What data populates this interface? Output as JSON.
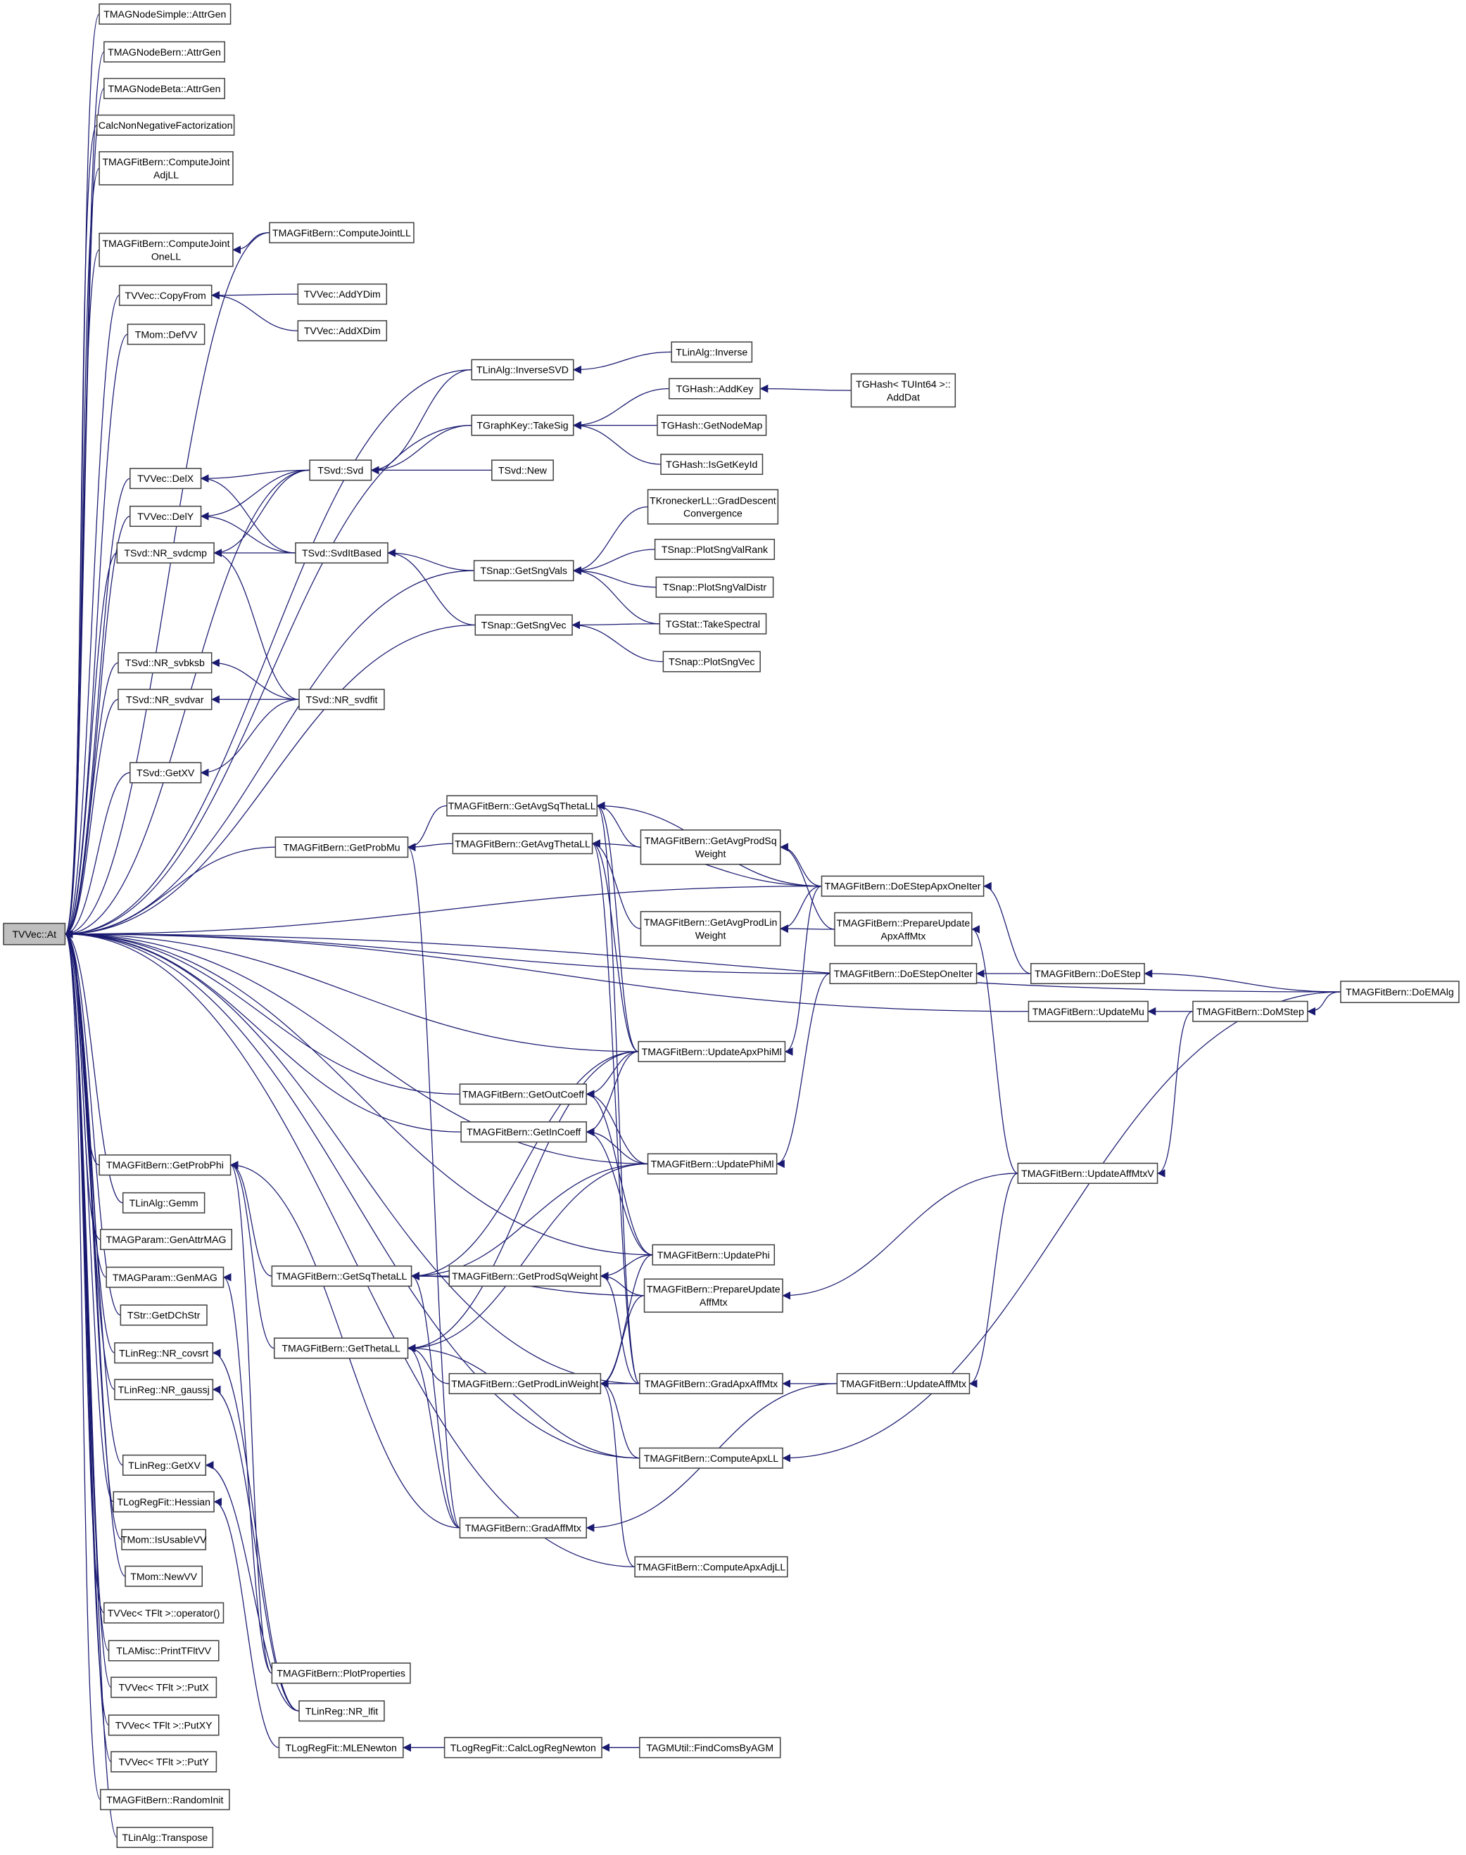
{
  "graph": {
    "root": "At",
    "edge_color": "#191970",
    "root_fill": "#bfbfbf",
    "nodes": [
      {
        "id": "At",
        "label": "TVVec::At"
      },
      {
        "id": "NSimple",
        "label": "TMAGNodeSimple::AttrGen"
      },
      {
        "id": "NBern",
        "label": "TMAGNodeBern::AttrGen"
      },
      {
        "id": "NBeta",
        "label": "TMAGNodeBeta::AttrGen"
      },
      {
        "id": "CalcNNF",
        "label": "CalcNonNegativeFactorization"
      },
      {
        "id": "CJAdj",
        "label": "TMAGFitBern::ComputeJoint\nAdjLL"
      },
      {
        "id": "CJOne",
        "label": "TMAGFitBern::ComputeJoint\nOneLL"
      },
      {
        "id": "CopyFrom",
        "label": "TVVec::CopyFrom"
      },
      {
        "id": "DefVV",
        "label": "TMom::DefVV"
      },
      {
        "id": "DelX",
        "label": "TVVec::DelX"
      },
      {
        "id": "DelY",
        "label": "TVVec::DelY"
      },
      {
        "id": "svdcmp",
        "label": "TSvd::NR_svdcmp"
      },
      {
        "id": "svbksb",
        "label": "TSvd::NR_svbksb"
      },
      {
        "id": "svdvar",
        "label": "TSvd::NR_svdvar"
      },
      {
        "id": "SvdGetXV",
        "label": "TSvd::GetXV"
      },
      {
        "id": "ProbMu",
        "label": "TMAGFitBern::GetProbMu"
      },
      {
        "id": "ProbPhi",
        "label": "TMAGFitBern::GetProbPhi"
      },
      {
        "id": "Gemm",
        "label": "TLinAlg::Gemm"
      },
      {
        "id": "GenAttrMAG",
        "label": "TMAGParam::GenAttrMAG"
      },
      {
        "id": "GenMAG",
        "label": "TMAGParam::GenMAG"
      },
      {
        "id": "GetDChStr",
        "label": "TStr::GetDChStr"
      },
      {
        "id": "covsrt",
        "label": "TLinReg::NR_covsrt"
      },
      {
        "id": "gaussj",
        "label": "TLinReg::NR_gaussj"
      },
      {
        "id": "LRGetXV",
        "label": "TLinReg::GetXV"
      },
      {
        "id": "Hessian",
        "label": "TLogRegFit::Hessian"
      },
      {
        "id": "IsUsableVV",
        "label": "TMom::IsUsableVV"
      },
      {
        "id": "NewVV",
        "label": "TMom::NewVV"
      },
      {
        "id": "OpParen",
        "label": "TVVec< TFlt >::operator()"
      },
      {
        "id": "PrintTFltVV",
        "label": "TLAMisc::PrintTFltVV"
      },
      {
        "id": "PutX",
        "label": "TVVec< TFlt >::PutX"
      },
      {
        "id": "PutXY",
        "label": "TVVec< TFlt >::PutXY"
      },
      {
        "id": "PutY",
        "label": "TVVec< TFlt >::PutY"
      },
      {
        "id": "RandomInit",
        "label": "TMAGFitBern::RandomInit"
      },
      {
        "id": "Transpose",
        "label": "TLinAlg::Transpose"
      },
      {
        "id": "CJLL",
        "label": "TMAGFitBern::ComputeJointLL"
      },
      {
        "id": "AddYDim",
        "label": "TVVec::AddYDim"
      },
      {
        "id": "AddXDim",
        "label": "TVVec::AddXDim"
      },
      {
        "id": "Svd",
        "label": "TSvd::Svd"
      },
      {
        "id": "SvdIt",
        "label": "TSvd::SvdItBased"
      },
      {
        "id": "svdfit",
        "label": "TSvd::NR_svdfit"
      },
      {
        "id": "SqThetaLL",
        "label": "TMAGFitBern::GetSqThetaLL"
      },
      {
        "id": "ThetaLL",
        "label": "TMAGFitBern::GetThetaLL"
      },
      {
        "id": "PlotProps",
        "label": "TMAGFitBern::PlotProperties"
      },
      {
        "id": "lfit",
        "label": "TLinReg::NR_lfit"
      },
      {
        "id": "MLENewton",
        "label": "TLogRegFit::MLENewton"
      },
      {
        "id": "InvSVD",
        "label": "TLinAlg::InverseSVD"
      },
      {
        "id": "TakeSig",
        "label": "TGraphKey::TakeSig"
      },
      {
        "id": "SvdNew",
        "label": "TSvd::New"
      },
      {
        "id": "SngVals",
        "label": "TSnap::GetSngVals"
      },
      {
        "id": "SngVec",
        "label": "TSnap::GetSngVec"
      },
      {
        "id": "AvgSq",
        "label": "TMAGFitBern::GetAvgSqThetaLL"
      },
      {
        "id": "AvgTh",
        "label": "TMAGFitBern::GetAvgThetaLL"
      },
      {
        "id": "OutCoeff",
        "label": "TMAGFitBern::GetOutCoeff"
      },
      {
        "id": "InCoeff",
        "label": "TMAGFitBern::GetInCoeff"
      },
      {
        "id": "ProdSq",
        "label": "TMAGFitBern::GetProdSqWeight"
      },
      {
        "id": "ProdLin",
        "label": "TMAGFitBern::GetProdLinWeight"
      },
      {
        "id": "GradAff",
        "label": "TMAGFitBern::GradAffMtx"
      },
      {
        "id": "CalcLRN",
        "label": "TLogRegFit::CalcLogRegNewton"
      },
      {
        "id": "Inverse",
        "label": "TLinAlg::Inverse"
      },
      {
        "id": "AddKey",
        "label": "TGHash::AddKey"
      },
      {
        "id": "GetNodeMap",
        "label": "TGHash::GetNodeMap"
      },
      {
        "id": "IsGetKeyId",
        "label": "TGHash::IsGetKeyId"
      },
      {
        "id": "GradDesc",
        "label": "TKroneckerLL::GradDescent\nConvergence"
      },
      {
        "id": "PlotRank",
        "label": "TSnap::PlotSngValRank"
      },
      {
        "id": "PlotDistr",
        "label": "TSnap::PlotSngValDistr"
      },
      {
        "id": "TakeSpec",
        "label": "TGStat::TakeSpectral"
      },
      {
        "id": "PlotSngVec",
        "label": "TSnap::PlotSngVec"
      },
      {
        "id": "AvgProdSq",
        "label": "TMAGFitBern::GetAvgProdSq\nWeight"
      },
      {
        "id": "AvgProdLin",
        "label": "TMAGFitBern::GetAvgProdLin\nWeight"
      },
      {
        "id": "UpdApxPhiMl",
        "label": "TMAGFitBern::UpdateApxPhiMl"
      },
      {
        "id": "UpdPhiMl",
        "label": "TMAGFitBern::UpdatePhiMl"
      },
      {
        "id": "UpdPhi",
        "label": "TMAGFitBern::UpdatePhi"
      },
      {
        "id": "PrepAff",
        "label": "TMAGFitBern::PrepareUpdate\nAffMtx"
      },
      {
        "id": "GradApx",
        "label": "TMAGFitBern::GradApxAffMtx"
      },
      {
        "id": "ApxLL",
        "label": "TMAGFitBern::ComputeApxLL"
      },
      {
        "id": "ApxAdjLL",
        "label": "TMAGFitBern::ComputeApxAdjLL"
      },
      {
        "id": "FindComs",
        "label": "TAGMUtil::FindComsByAGM"
      },
      {
        "id": "AddDat",
        "label": "TGHash< TUInt64 >::\nAddDat"
      },
      {
        "id": "EApxOne",
        "label": "TMAGFitBern::DoEStepApxOneIter"
      },
      {
        "id": "PrepApx",
        "label": "TMAGFitBern::PrepareUpdate\nApxAffMtx"
      },
      {
        "id": "EOne",
        "label": "TMAGFitBern::DoEStepOneIter"
      },
      {
        "id": "UpdAff",
        "label": "TMAGFitBern::UpdateAffMtx"
      },
      {
        "id": "EStep",
        "label": "TMAGFitBern::DoEStep"
      },
      {
        "id": "UpdMu",
        "label": "TMAGFitBern::UpdateMu"
      },
      {
        "id": "UpdAffV",
        "label": "TMAGFitBern::UpdateAffMtxV"
      },
      {
        "id": "MStep",
        "label": "TMAGFitBern::DoMStep"
      },
      {
        "id": "EMAlg",
        "label": "TMAGFitBern::DoEMAlg"
      }
    ],
    "edges": [
      [
        "NSimple",
        "At"
      ],
      [
        "NBern",
        "At"
      ],
      [
        "NBeta",
        "At"
      ],
      [
        "CalcNNF",
        "At"
      ],
      [
        "CJAdj",
        "At"
      ],
      [
        "CJOne",
        "At"
      ],
      [
        "CopyFrom",
        "At"
      ],
      [
        "DefVV",
        "At"
      ],
      [
        "DelX",
        "At"
      ],
      [
        "DelY",
        "At"
      ],
      [
        "svdcmp",
        "At"
      ],
      [
        "svbksb",
        "At"
      ],
      [
        "svdvar",
        "At"
      ],
      [
        "SvdGetXV",
        "At"
      ],
      [
        "ProbMu",
        "At"
      ],
      [
        "ProbPhi",
        "At"
      ],
      [
        "Gemm",
        "At"
      ],
      [
        "GenAttrMAG",
        "At"
      ],
      [
        "GenMAG",
        "At"
      ],
      [
        "GetDChStr",
        "At"
      ],
      [
        "covsrt",
        "At"
      ],
      [
        "gaussj",
        "At"
      ],
      [
        "LRGetXV",
        "At"
      ],
      [
        "Hessian",
        "At"
      ],
      [
        "IsUsableVV",
        "At"
      ],
      [
        "NewVV",
        "At"
      ],
      [
        "OpParen",
        "At"
      ],
      [
        "PrintTFltVV",
        "At"
      ],
      [
        "PutX",
        "At"
      ],
      [
        "PutXY",
        "At"
      ],
      [
        "PutY",
        "At"
      ],
      [
        "RandomInit",
        "At"
      ],
      [
        "Transpose",
        "At"
      ],
      [
        "CJLL",
        "At"
      ],
      [
        "Svd",
        "At"
      ],
      [
        "InvSVD",
        "At"
      ],
      [
        "TakeSig",
        "At"
      ],
      [
        "SngVals",
        "At"
      ],
      [
        "SngVec",
        "At"
      ],
      [
        "EMAlg",
        "At"
      ],
      [
        "EApxOne",
        "At"
      ],
      [
        "EOne",
        "At"
      ],
      [
        "UpdMu",
        "At"
      ],
      [
        "UpdApxPhiMl",
        "At"
      ],
      [
        "UpdPhiMl",
        "At"
      ],
      [
        "UpdPhi",
        "At"
      ],
      [
        "OutCoeff",
        "At"
      ],
      [
        "InCoeff",
        "At"
      ],
      [
        "GradApx",
        "At"
      ],
      [
        "ApxLL",
        "At"
      ],
      [
        "ApxAdjLL",
        "At"
      ],
      [
        "CJLL",
        "CJOne"
      ],
      [
        "AddYDim",
        "CopyFrom"
      ],
      [
        "AddXDim",
        "CopyFrom"
      ],
      [
        "Inverse",
        "InvSVD"
      ],
      [
        "InvSVD",
        "Svd"
      ],
      [
        "TakeSig",
        "Svd"
      ],
      [
        "SvdNew",
        "Svd"
      ],
      [
        "AddKey",
        "TakeSig"
      ],
      [
        "GetNodeMap",
        "TakeSig"
      ],
      [
        "IsGetKeyId",
        "TakeSig"
      ],
      [
        "AddDat",
        "AddKey"
      ],
      [
        "Svd",
        "DelX"
      ],
      [
        "Svd",
        "DelY"
      ],
      [
        "Svd",
        "svdcmp"
      ],
      [
        "SvdIt",
        "DelX"
      ],
      [
        "SvdIt",
        "DelY"
      ],
      [
        "SvdIt",
        "svdcmp"
      ],
      [
        "SngVals",
        "SvdIt"
      ],
      [
        "SngVec",
        "SvdIt"
      ],
      [
        "GradDesc",
        "SngVals"
      ],
      [
        "PlotRank",
        "SngVals"
      ],
      [
        "PlotDistr",
        "SngVals"
      ],
      [
        "TakeSpec",
        "SngVals"
      ],
      [
        "TakeSpec",
        "SngVec"
      ],
      [
        "PlotSngVec",
        "SngVec"
      ],
      [
        "svdfit",
        "svdcmp"
      ],
      [
        "svdfit",
        "svbksb"
      ],
      [
        "svdfit",
        "svdvar"
      ],
      [
        "svdfit",
        "SvdGetXV"
      ],
      [
        "AvgSq",
        "ProbMu"
      ],
      [
        "AvgTh",
        "ProbMu"
      ],
      [
        "AvgProdSq",
        "AvgSq"
      ],
      [
        "AvgProdLin",
        "AvgTh"
      ],
      [
        "EApxOne",
        "AvgSq"
      ],
      [
        "EApxOne",
        "AvgTh"
      ],
      [
        "EApxOne",
        "AvgProdSq"
      ],
      [
        "EApxOne",
        "AvgProdLin"
      ],
      [
        "PrepApx",
        "AvgProdSq"
      ],
      [
        "PrepApx",
        "AvgProdLin"
      ],
      [
        "EStep",
        "EApxOne"
      ],
      [
        "EStep",
        "EOne"
      ],
      [
        "EMAlg",
        "EStep"
      ],
      [
        "EMAlg",
        "MStep"
      ],
      [
        "EMAlg",
        "ApxLL"
      ],
      [
        "MStep",
        "UpdMu"
      ],
      [
        "MStep",
        "UpdAffV"
      ],
      [
        "UpdAffV",
        "PrepApx"
      ],
      [
        "UpdAffV",
        "PrepAff"
      ],
      [
        "UpdAffV",
        "UpdAff"
      ],
      [
        "EOne",
        "UpdPhiMl"
      ],
      [
        "EApxOne",
        "UpdApxPhiMl"
      ],
      [
        "UpdApxPhiMl",
        "AvgSq"
      ],
      [
        "UpdApxPhiMl",
        "AvgTh"
      ],
      [
        "UpdApxPhiMl",
        "OutCoeff"
      ],
      [
        "UpdApxPhiMl",
        "InCoeff"
      ],
      [
        "UpdApxPhiMl",
        "SqThetaLL"
      ],
      [
        "UpdApxPhiMl",
        "ThetaLL"
      ],
      [
        "UpdPhiMl",
        "OutCoeff"
      ],
      [
        "UpdPhiMl",
        "InCoeff"
      ],
      [
        "UpdPhiMl",
        "SqThetaLL"
      ],
      [
        "UpdPhiMl",
        "ThetaLL"
      ],
      [
        "UpdPhi",
        "OutCoeff"
      ],
      [
        "UpdPhi",
        "InCoeff"
      ],
      [
        "UpdPhi",
        "ProdSq"
      ],
      [
        "UpdPhi",
        "ProdLin"
      ],
      [
        "ProdSq",
        "SqThetaLL"
      ],
      [
        "ProdLin",
        "ThetaLL"
      ],
      [
        "SqThetaLL",
        "ProbPhi"
      ],
      [
        "ThetaLL",
        "ProbPhi"
      ],
      [
        "PrepAff",
        "ProdSq"
      ],
      [
        "PrepAff",
        "ProdLin"
      ],
      [
        "PrepAff",
        "SqThetaLL"
      ],
      [
        "GradApx",
        "ProdLin"
      ],
      [
        "GradApx",
        "ProdSq"
      ],
      [
        "GradApx",
        "AvgSq"
      ],
      [
        "GradApx",
        "AvgTh"
      ],
      [
        "GradAff",
        "SqThetaLL"
      ],
      [
        "GradAff",
        "ThetaLL"
      ],
      [
        "GradAff",
        "ProbPhi"
      ],
      [
        "GradAff",
        "ProbMu"
      ],
      [
        "ApxLL",
        "ProdLin"
      ],
      [
        "ApxLL",
        "ThetaLL"
      ],
      [
        "ApxAdjLL",
        "ProdLin"
      ],
      [
        "UpdAff",
        "GradApx"
      ],
      [
        "UpdAff",
        "GradAff"
      ],
      [
        "PlotProps",
        "GenMAG"
      ],
      [
        "PlotProps",
        "ProbPhi"
      ],
      [
        "lfit",
        "covsrt"
      ],
      [
        "lfit",
        "gaussj"
      ],
      [
        "lfit",
        "LRGetXV"
      ],
      [
        "MLENewton",
        "Hessian"
      ],
      [
        "CalcLRN",
        "MLENewton"
      ],
      [
        "FindComs",
        "CalcLRN"
      ]
    ]
  }
}
